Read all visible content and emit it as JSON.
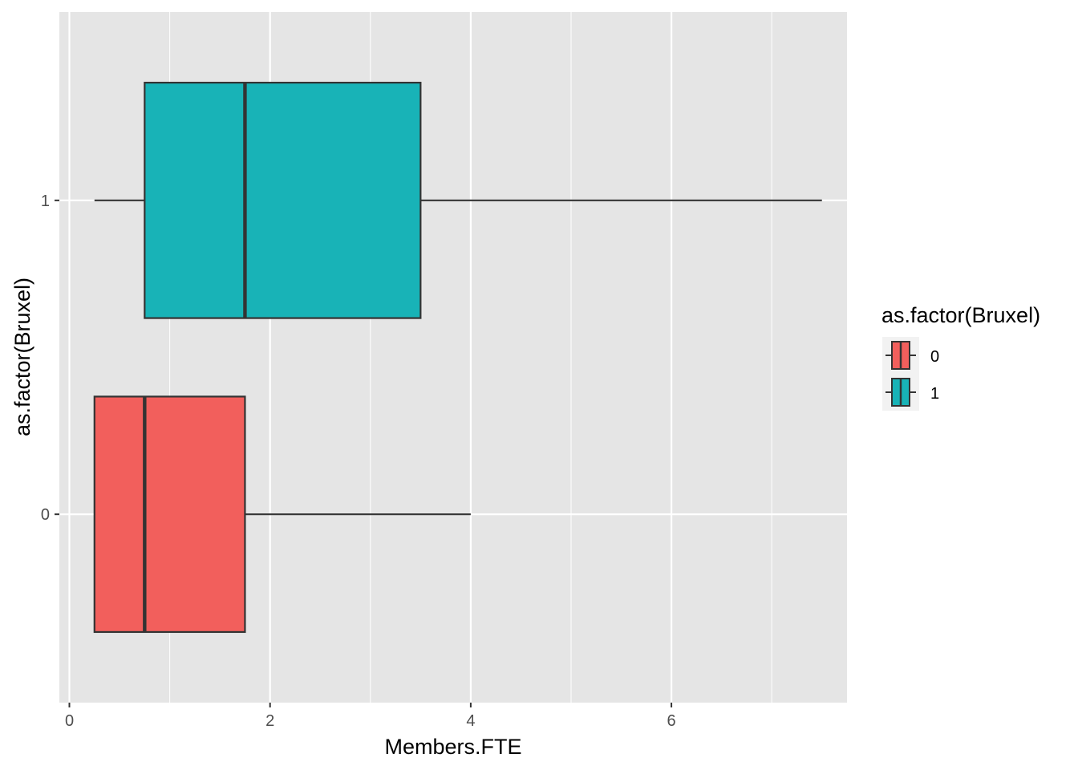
{
  "chart_data": {
    "type": "boxplot",
    "orientation": "horizontal",
    "title": "",
    "xlabel": "Members.FTE",
    "ylabel": "as.factor(Bruxel)",
    "xlim": [
      -0.1,
      7.75
    ],
    "x_ticks": [
      0,
      2,
      4,
      6
    ],
    "x_tick_labels": [
      "0",
      "2",
      "4",
      "6"
    ],
    "categories": [
      "0",
      "1"
    ],
    "grid": true,
    "panel_background": "#e5e5e5",
    "legend": {
      "title": "as.factor(Bruxel)",
      "position": "right",
      "entries": [
        "0",
        "1"
      ]
    },
    "series": [
      {
        "name": "0",
        "color": "#f25f5c",
        "min": 0.25,
        "q1": 0.25,
        "median": 0.75,
        "q3": 1.75,
        "max": 4.0
      },
      {
        "name": "1",
        "color": "#18b3b7",
        "min": 0.25,
        "q1": 0.75,
        "median": 1.75,
        "q3": 3.5,
        "max": 7.5
      }
    ]
  }
}
